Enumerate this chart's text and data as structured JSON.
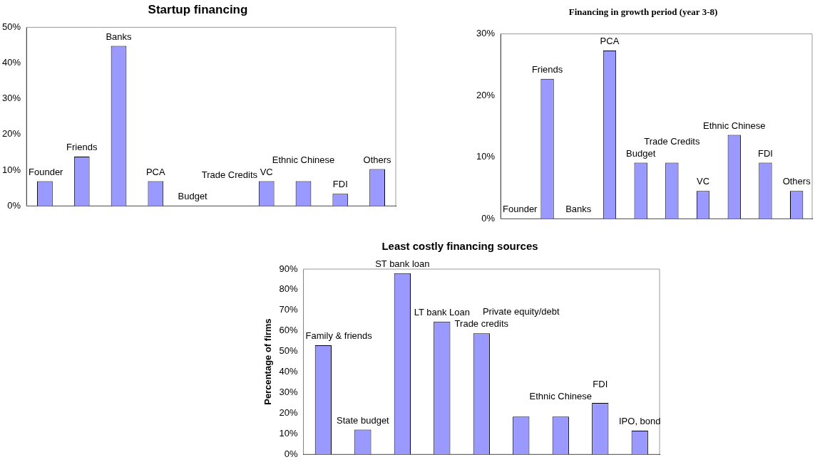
{
  "chart_data": [
    {
      "type": "bar",
      "title": "Startup financing",
      "categories": [
        "Founder",
        "Friends",
        "Banks",
        "PCA",
        "Budget",
        "Trade Credits",
        "VC",
        "Ethnic Chinese",
        "FDI",
        "Others"
      ],
      "values": [
        6.9,
        13.8,
        44.8,
        6.9,
        0,
        0,
        6.9,
        6.9,
        3.4,
        10.3
      ],
      "color": "#9999ff",
      "ylim": [
        0,
        50
      ],
      "yticks": [
        {
          "value": 0,
          "label": "0%"
        },
        {
          "value": 10,
          "label": "10%"
        },
        {
          "value": 20,
          "label": "20%"
        },
        {
          "value": 30,
          "label": "30%"
        },
        {
          "value": 40,
          "label": "40%"
        },
        {
          "value": 50,
          "label": "50%"
        }
      ],
      "grid": false,
      "legend": false,
      "tick_labels": "y"
    },
    {
      "type": "bar",
      "title": "Financing in growth period (year 3-8)",
      "categories": [
        "Founder",
        "Friends",
        "Banks",
        "PCA",
        "Budget",
        "Trade Credits",
        "VC",
        "Ethnic Chinese",
        "FDI",
        "Others"
      ],
      "values": [
        0,
        22.7,
        0,
        27.3,
        9.1,
        9.1,
        4.5,
        13.6,
        9.1,
        4.5
      ],
      "color": "#9999ff",
      "ylim": [
        0,
        30
      ],
      "yticks": [
        {
          "value": 0,
          "label": "0%"
        },
        {
          "value": 10,
          "label": "10%"
        },
        {
          "value": 20,
          "label": "20%"
        },
        {
          "value": 30,
          "label": "30%"
        }
      ],
      "grid": false,
      "legend": false,
      "tick_labels": "y"
    },
    {
      "type": "bar",
      "title": "Least costly financing sources",
      "ylabel": "Percentage of firms",
      "categories": [
        "Family & friends",
        "State budget",
        "ST bank loan",
        "LT bank Loan",
        "Trade credits",
        "Private equity/debt",
        "Ethnic Chinese",
        "FDI",
        "IPO, bond"
      ],
      "values": [
        53,
        12,
        88,
        64.5,
        58.8,
        18.3,
        18.3,
        25,
        11.5
      ],
      "color": "#9999ff",
      "ylim": [
        0,
        90
      ],
      "yticks": [
        {
          "value": 0,
          "label": "0%"
        },
        {
          "value": 10,
          "label": "10%"
        },
        {
          "value": 20,
          "label": "20%"
        },
        {
          "value": 30,
          "label": "30%"
        },
        {
          "value": 40,
          "label": "40%"
        },
        {
          "value": 50,
          "label": "50%"
        },
        {
          "value": 60,
          "label": "60%"
        },
        {
          "value": 70,
          "label": "70%"
        },
        {
          "value": 80,
          "label": "80%"
        },
        {
          "value": 90,
          "label": "90%"
        }
      ],
      "grid": false,
      "legend": false,
      "tick_labels": "y"
    }
  ]
}
